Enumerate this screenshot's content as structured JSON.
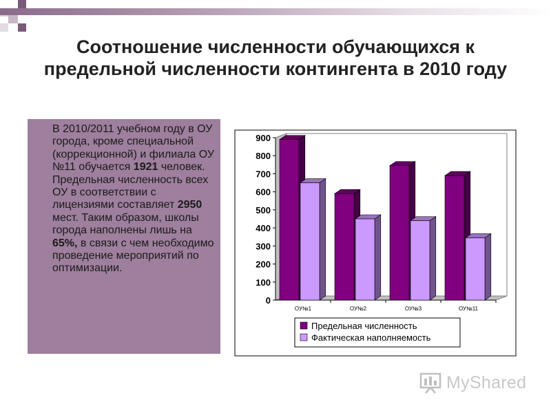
{
  "title": "Соотношение численности обучающихся к предельной численности контингента в 2010 году",
  "text_block": {
    "p1": "В 2010/2011 учебном году в ОУ города, кроме специальной (коррекционной) и филиала ОУ №11 обучается",
    "v1": "1921",
    "p2": "человек. Предельная численность всех ОУ в соответствии с лицензиями составляет",
    "v2": "2950",
    "p3": "мест. Таким образом, школы города наполнены лишь на",
    "v3": "65%,",
    "p4": "в связи с чем необходимо проведение мероприятий по оптимизации."
  },
  "logo": {
    "text": "MyShared",
    "icon": "presentation-board-icon"
  },
  "colors": {
    "accent": "#9e7f9d",
    "series1": "#800080",
    "series2": "#cc99ff"
  },
  "chart_data": {
    "type": "bar",
    "categories": [
      "ОУ№1",
      "ОУ№2",
      "ОУ№3",
      "ОУ№11"
    ],
    "series": [
      {
        "name": "Предельная численность",
        "values": [
          890,
          590,
          745,
          690
        ]
      },
      {
        "name": "Фактическая наполняемость",
        "values": [
          650,
          450,
          440,
          345
        ]
      }
    ],
    "ylim": [
      0,
      900
    ],
    "yticks": [
      "0",
      "100",
      "200",
      "300",
      "400",
      "500",
      "600",
      "700",
      "800",
      "900"
    ],
    "grid": false,
    "legend": "bottom",
    "style": "3d"
  }
}
